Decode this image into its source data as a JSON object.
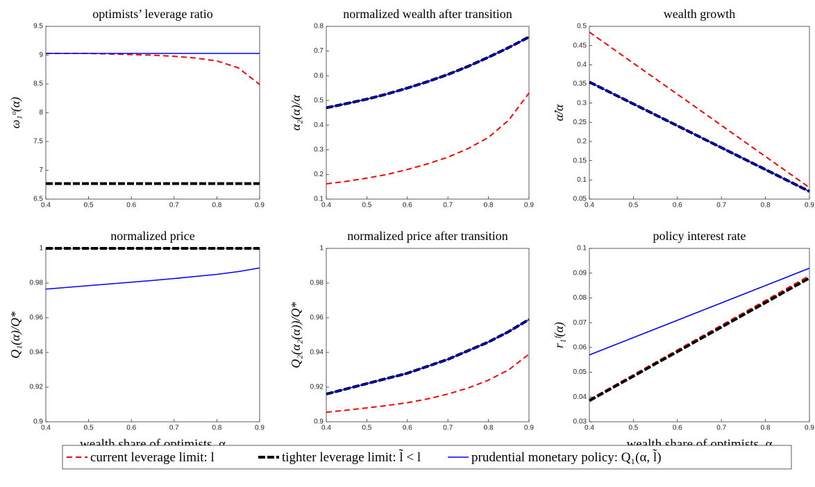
{
  "chart_data": [
    {
      "type": "line",
      "title": "optimists’ leverage ratio",
      "ylabel": "ω₁ᵒ(α)",
      "x": [
        0.4,
        0.45,
        0.5,
        0.55,
        0.6,
        0.65,
        0.7,
        0.75,
        0.8,
        0.85,
        0.9
      ],
      "xlim": [
        0.4,
        0.9
      ],
      "xticks": [
        0.4,
        0.5,
        0.6,
        0.7,
        0.8,
        0.9
      ],
      "ylim": [
        6.5,
        9.5
      ],
      "yticks": [
        6.5,
        7,
        7.5,
        8,
        8.5,
        9,
        9.5
      ],
      "series": [
        {
          "name": "current leverage limit: l",
          "color": "#ff0000",
          "linestyle": "dashed",
          "linewidth": 2,
          "values": [
            9.03,
            9.03,
            9.03,
            9.02,
            9.01,
            9.0,
            8.98,
            8.95,
            8.9,
            8.78,
            8.49
          ]
        },
        {
          "name": "tighter leverage limit: l̃ < l",
          "color": "#000000",
          "linestyle": "thick-dashed",
          "linewidth": 4,
          "values": [
            6.77,
            6.77,
            6.77,
            6.77,
            6.77,
            6.77,
            6.77,
            6.77,
            6.77,
            6.77,
            6.77
          ]
        },
        {
          "name": "prudential monetary policy: Q₁(α, l̃)",
          "color": "#0000ff",
          "linestyle": "solid",
          "linewidth": 1.6,
          "values": [
            9.03,
            9.03,
            9.03,
            9.03,
            9.03,
            9.03,
            9.03,
            9.03,
            9.03,
            9.03,
            9.03
          ]
        }
      ]
    },
    {
      "type": "line",
      "title": "normalized wealth after transition",
      "ylabel": "α₂(α)/α",
      "x": [
        0.4,
        0.45,
        0.5,
        0.55,
        0.6,
        0.65,
        0.7,
        0.75,
        0.8,
        0.85,
        0.9
      ],
      "xlim": [
        0.4,
        0.9
      ],
      "xticks": [
        0.4,
        0.5,
        0.6,
        0.7,
        0.8,
        0.9
      ],
      "ylim": [
        0.1,
        0.8
      ],
      "yticks": [
        0.1,
        0.2,
        0.3,
        0.4,
        0.5,
        0.6,
        0.7,
        0.8
      ],
      "series": [
        {
          "color": "#ff0000",
          "linestyle": "dashed",
          "linewidth": 2,
          "values": [
            0.162,
            0.172,
            0.185,
            0.2,
            0.22,
            0.243,
            0.27,
            0.305,
            0.35,
            0.42,
            0.53
          ]
        },
        {
          "color": "#000000",
          "linestyle": "thick-dashed",
          "linewidth": 4,
          "values": [
            0.47,
            0.487,
            0.505,
            0.526,
            0.55,
            0.576,
            0.605,
            0.638,
            0.675,
            0.714,
            0.757
          ]
        },
        {
          "color": "#0000ff",
          "linestyle": "solid",
          "linewidth": 1.6,
          "values": [
            0.47,
            0.487,
            0.505,
            0.526,
            0.55,
            0.576,
            0.605,
            0.638,
            0.675,
            0.714,
            0.757
          ]
        }
      ]
    },
    {
      "type": "line",
      "title": "wealth growth",
      "ylabel": "α̇/α",
      "x": [
        0.4,
        0.45,
        0.5,
        0.55,
        0.6,
        0.65,
        0.7,
        0.75,
        0.8,
        0.85,
        0.9
      ],
      "xlim": [
        0.4,
        0.9
      ],
      "xticks": [
        0.4,
        0.5,
        0.6,
        0.7,
        0.8,
        0.9
      ],
      "ylim": [
        0.05,
        0.5
      ],
      "yticks": [
        0.05,
        0.1,
        0.15,
        0.2,
        0.25,
        0.3,
        0.35,
        0.4,
        0.45,
        0.5
      ],
      "series": [
        {
          "color": "#ff0000",
          "linestyle": "dashed",
          "linewidth": 2,
          "values": [
            0.485,
            0.4445,
            0.404,
            0.3635,
            0.323,
            0.2825,
            0.242,
            0.2015,
            0.161,
            0.1205,
            0.08
          ]
        },
        {
          "color": "#000000",
          "linestyle": "thick-dashed",
          "linewidth": 4,
          "values": [
            0.355,
            0.3265,
            0.298,
            0.2695,
            0.241,
            0.2125,
            0.184,
            0.1555,
            0.127,
            0.0985,
            0.07
          ]
        },
        {
          "color": "#0000ff",
          "linestyle": "solid",
          "linewidth": 1.6,
          "values": [
            0.355,
            0.3265,
            0.298,
            0.2695,
            0.241,
            0.2125,
            0.184,
            0.1555,
            0.127,
            0.0985,
            0.07
          ]
        }
      ]
    },
    {
      "type": "line",
      "title": "normalized price",
      "ylabel": "Q₁(α)/Q*",
      "xlabel": "wealth share of optimists, α",
      "x": [
        0.4,
        0.45,
        0.5,
        0.55,
        0.6,
        0.65,
        0.7,
        0.75,
        0.8,
        0.85,
        0.9
      ],
      "xlim": [
        0.4,
        0.9
      ],
      "xticks": [
        0.4,
        0.5,
        0.6,
        0.7,
        0.8,
        0.9
      ],
      "ylim": [
        0.9,
        1
      ],
      "yticks": [
        0.9,
        0.92,
        0.94,
        0.96,
        0.98,
        1
      ],
      "series": [
        {
          "color": "#ff0000",
          "linestyle": "dashed",
          "linewidth": 2,
          "values": [
            1,
            1,
            1,
            1,
            1,
            1,
            1,
            1,
            1,
            1,
            1
          ]
        },
        {
          "color": "#000000",
          "linestyle": "thick-dashed",
          "linewidth": 4,
          "values": [
            1,
            1,
            1,
            1,
            1,
            1,
            1,
            1,
            1,
            1,
            1
          ]
        },
        {
          "color": "#0000ff",
          "linestyle": "solid",
          "linewidth": 1.6,
          "values": [
            0.9765,
            0.9775,
            0.9785,
            0.9795,
            0.9805,
            0.9815,
            0.9826,
            0.9838,
            0.985,
            0.9866,
            0.9887
          ]
        }
      ]
    },
    {
      "type": "line",
      "title": "normalized price after transition",
      "ylabel": "Q₂(α₂(α))/Q*",
      "x": [
        0.4,
        0.45,
        0.5,
        0.55,
        0.6,
        0.65,
        0.7,
        0.75,
        0.8,
        0.85,
        0.9
      ],
      "xlim": [
        0.4,
        0.9
      ],
      "xticks": [
        0.4,
        0.5,
        0.6,
        0.7,
        0.8,
        0.9
      ],
      "ylim": [
        0.9,
        1
      ],
      "yticks": [
        0.9,
        0.92,
        0.94,
        0.96,
        0.98,
        1
      ],
      "series": [
        {
          "color": "#ff0000",
          "linestyle": "dashed",
          "linewidth": 2,
          "values": [
            0.9055,
            0.9067,
            0.908,
            0.9094,
            0.911,
            0.9132,
            0.916,
            0.9195,
            0.924,
            0.93,
            0.939
          ]
        },
        {
          "color": "#000000",
          "linestyle": "thick-dashed",
          "linewidth": 4,
          "values": [
            0.916,
            0.919,
            0.922,
            0.925,
            0.928,
            0.932,
            0.936,
            0.941,
            0.946,
            0.952,
            0.959
          ]
        },
        {
          "color": "#0000ff",
          "linestyle": "solid",
          "linewidth": 1.6,
          "values": [
            0.916,
            0.919,
            0.922,
            0.925,
            0.928,
            0.932,
            0.936,
            0.941,
            0.946,
            0.952,
            0.959
          ]
        }
      ]
    },
    {
      "type": "line",
      "title": "policy interest rate",
      "ylabel": "r₁ᶠ(α)",
      "xlabel": "wealth share of optimists, α",
      "x": [
        0.4,
        0.45,
        0.5,
        0.55,
        0.6,
        0.65,
        0.7,
        0.75,
        0.8,
        0.85,
        0.9
      ],
      "xlim": [
        0.4,
        0.9
      ],
      "xticks": [
        0.4,
        0.5,
        0.6,
        0.7,
        0.8,
        0.9
      ],
      "ylim": [
        0.03,
        0.1
      ],
      "yticks": [
        0.03,
        0.04,
        0.05,
        0.06,
        0.07,
        0.08,
        0.09,
        0.1
      ],
      "series": [
        {
          "color": "#ff0000",
          "linestyle": "dashed",
          "linewidth": 2,
          "values": [
            0.039,
            0.044,
            0.049,
            0.054,
            0.059,
            0.064,
            0.069,
            0.074,
            0.079,
            0.084,
            0.089
          ]
        },
        {
          "color": "#000000",
          "linestyle": "thick-dashed",
          "linewidth": 4,
          "values": [
            0.0385,
            0.0435,
            0.0484,
            0.0534,
            0.0583,
            0.0633,
            0.0682,
            0.0732,
            0.0781,
            0.0831,
            0.088
          ]
        },
        {
          "color": "#0000ff",
          "linestyle": "solid",
          "linewidth": 1.6,
          "values": [
            0.057,
            0.0605,
            0.064,
            0.0675,
            0.071,
            0.0745,
            0.078,
            0.0815,
            0.085,
            0.0885,
            0.092
          ]
        }
      ]
    }
  ]
}
